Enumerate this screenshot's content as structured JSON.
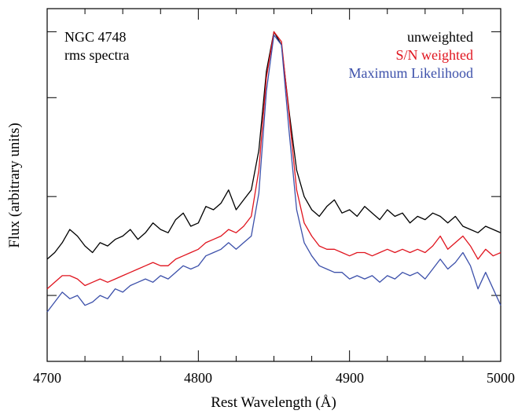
{
  "chart_data": {
    "type": "line",
    "title": "",
    "xlabel": "Rest Wavelength (Å)",
    "ylabel": "Flux (arbitrary units)",
    "xlim": [
      4700,
      5000
    ],
    "ylim": [
      0,
      1.07
    ],
    "x_major_ticks": [
      "4700",
      "4800",
      "4900",
      "5000"
    ],
    "x_minor_tick_step": 25,
    "y_ticks": [
      0.2,
      0.5,
      0.8,
      1.0
    ],
    "y_tick_labels_shown": false,
    "grid": false,
    "legend_position": "top-right",
    "annotations": [
      {
        "id": "object",
        "text": "NGC 4748"
      },
      {
        "id": "spectrum-type",
        "text": "rms spectra"
      }
    ],
    "series": [
      {
        "name": "unweighted",
        "color": "#000000",
        "x": [
          4700,
          4705,
          4710,
          4715,
          4720,
          4725,
          4730,
          4735,
          4740,
          4745,
          4750,
          4755,
          4760,
          4765,
          4770,
          4775,
          4780,
          4785,
          4790,
          4795,
          4800,
          4805,
          4810,
          4815,
          4820,
          4825,
          4830,
          4835,
          4840,
          4845,
          4850,
          4855,
          4860,
          4865,
          4870,
          4875,
          4880,
          4885,
          4890,
          4895,
          4900,
          4905,
          4910,
          4915,
          4920,
          4925,
          4930,
          4935,
          4940,
          4945,
          4950,
          4955,
          4960,
          4965,
          4970,
          4975,
          4980,
          4985,
          4990,
          4995,
          5000
        ],
        "values": [
          0.31,
          0.33,
          0.36,
          0.4,
          0.38,
          0.35,
          0.33,
          0.36,
          0.35,
          0.37,
          0.38,
          0.4,
          0.37,
          0.39,
          0.42,
          0.4,
          0.39,
          0.43,
          0.45,
          0.41,
          0.42,
          0.47,
          0.46,
          0.48,
          0.52,
          0.46,
          0.49,
          0.52,
          0.64,
          0.88,
          1.0,
          0.96,
          0.76,
          0.58,
          0.5,
          0.46,
          0.44,
          0.47,
          0.49,
          0.45,
          0.46,
          0.44,
          0.47,
          0.45,
          0.43,
          0.46,
          0.44,
          0.45,
          0.42,
          0.44,
          0.43,
          0.45,
          0.44,
          0.42,
          0.44,
          0.41,
          0.4,
          0.39,
          0.41,
          0.4,
          0.39
        ]
      },
      {
        "name": "S/N weighted",
        "color": "#e0141e",
        "x": [
          4700,
          4705,
          4710,
          4715,
          4720,
          4725,
          4730,
          4735,
          4740,
          4745,
          4750,
          4755,
          4760,
          4765,
          4770,
          4775,
          4780,
          4785,
          4790,
          4795,
          4800,
          4805,
          4810,
          4815,
          4820,
          4825,
          4830,
          4835,
          4840,
          4845,
          4850,
          4855,
          4860,
          4865,
          4870,
          4875,
          4880,
          4885,
          4890,
          4895,
          4900,
          4905,
          4910,
          4915,
          4920,
          4925,
          4930,
          4935,
          4940,
          4945,
          4950,
          4955,
          4960,
          4965,
          4970,
          4975,
          4980,
          4985,
          4990,
          4995,
          5000
        ],
        "values": [
          0.22,
          0.24,
          0.26,
          0.26,
          0.25,
          0.23,
          0.24,
          0.25,
          0.24,
          0.25,
          0.26,
          0.27,
          0.28,
          0.29,
          0.3,
          0.29,
          0.29,
          0.31,
          0.32,
          0.33,
          0.34,
          0.36,
          0.37,
          0.38,
          0.4,
          0.39,
          0.41,
          0.44,
          0.58,
          0.86,
          1.0,
          0.97,
          0.75,
          0.52,
          0.42,
          0.38,
          0.35,
          0.34,
          0.34,
          0.33,
          0.32,
          0.33,
          0.33,
          0.32,
          0.33,
          0.34,
          0.33,
          0.34,
          0.33,
          0.34,
          0.33,
          0.35,
          0.38,
          0.34,
          0.36,
          0.38,
          0.35,
          0.31,
          0.34,
          0.32,
          0.33
        ]
      },
      {
        "name": "Maximum Likelihood",
        "color": "#3c50aa",
        "x": [
          4700,
          4705,
          4710,
          4715,
          4720,
          4725,
          4730,
          4735,
          4740,
          4745,
          4750,
          4755,
          4760,
          4765,
          4770,
          4775,
          4780,
          4785,
          4790,
          4795,
          4800,
          4805,
          4810,
          4815,
          4820,
          4825,
          4830,
          4835,
          4840,
          4845,
          4850,
          4855,
          4860,
          4865,
          4870,
          4875,
          4880,
          4885,
          4890,
          4895,
          4900,
          4905,
          4910,
          4915,
          4920,
          4925,
          4930,
          4935,
          4940,
          4945,
          4950,
          4955,
          4960,
          4965,
          4970,
          4975,
          4980,
          4985,
          4990,
          4995,
          5000
        ],
        "values": [
          0.15,
          0.18,
          0.21,
          0.19,
          0.2,
          0.17,
          0.18,
          0.2,
          0.19,
          0.22,
          0.21,
          0.23,
          0.24,
          0.25,
          0.24,
          0.26,
          0.25,
          0.27,
          0.29,
          0.28,
          0.29,
          0.32,
          0.33,
          0.34,
          0.36,
          0.34,
          0.36,
          0.38,
          0.51,
          0.82,
          0.99,
          0.96,
          0.7,
          0.46,
          0.36,
          0.32,
          0.29,
          0.28,
          0.27,
          0.27,
          0.25,
          0.26,
          0.25,
          0.26,
          0.24,
          0.26,
          0.25,
          0.27,
          0.26,
          0.27,
          0.25,
          0.28,
          0.31,
          0.28,
          0.3,
          0.33,
          0.29,
          0.22,
          0.27,
          0.22,
          0.17
        ]
      }
    ]
  }
}
